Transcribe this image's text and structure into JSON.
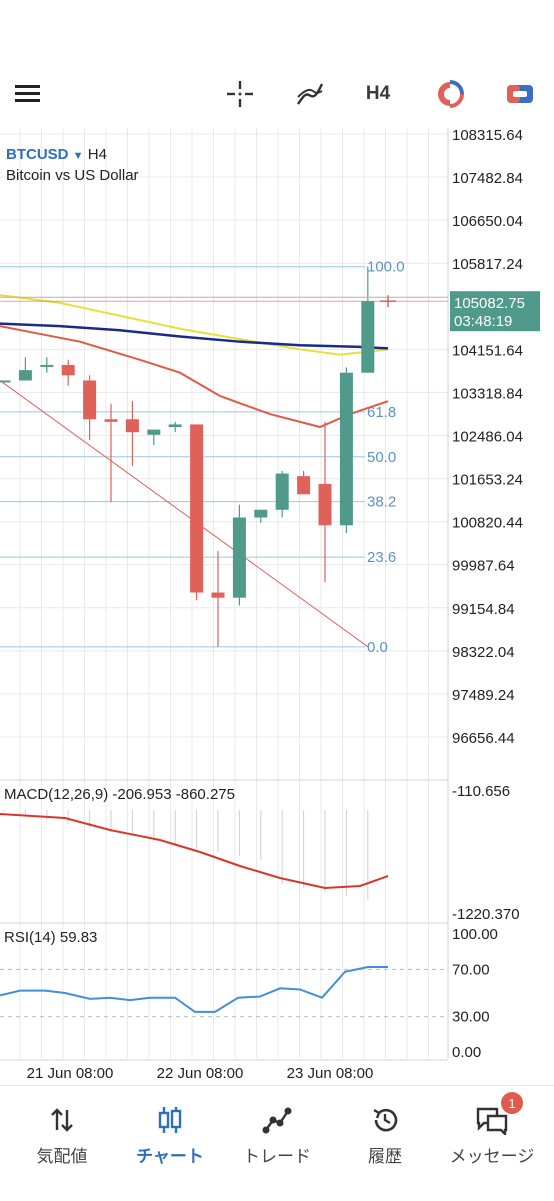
{
  "toolbar": {
    "menu_icon": "hamburger-menu-icon",
    "crosshair_icon": "crosshair-icon",
    "indicators_icon": "indicators-icon",
    "timeframe": "H4",
    "objects_icon": "objects-icon",
    "trade_icon": "trade-icon"
  },
  "chart": {
    "symbol": "BTCUSD",
    "timeframe": "H4",
    "description": "Bitcoin vs US Dollar",
    "current_price": "105082.75",
    "countdown": "03:48:19",
    "price_labels": [
      "108315.64",
      "107482.84",
      "106650.04",
      "105817.24",
      "104151.64",
      "103318.84",
      "102486.04",
      "101653.24",
      "100820.44",
      "99987.64",
      "99154.84",
      "98322.04",
      "97489.24",
      "96656.44"
    ],
    "fib_levels": [
      "100.0",
      "61.8",
      "50.0",
      "38.2",
      "23.6",
      "0.0"
    ],
    "time_labels": [
      "21 Jun 08:00",
      "22 Jun 08:00",
      "23 Jun 08:00"
    ],
    "colors": {
      "bull": "#4f9a8a",
      "bear": "#e0605a",
      "grid": "#e9e9e9",
      "fib": "#9cc6e4",
      "fib_text": "#5b93c6",
      "ma_yellow": "#e6e03a",
      "ma_blue": "#1b2a8a",
      "ma_red": "#e05a45",
      "macd": "#d9362b",
      "rsi": "#3f8fde"
    }
  },
  "macd": {
    "label": "MACD(12,26,9) -206.953 -860.275",
    "scale_top": "-110.656",
    "scale_bottom": "-1220.370"
  },
  "rsi": {
    "label": "RSI(14) 59.83",
    "levels": [
      "100.00",
      "70.00",
      "30.00",
      "0.00"
    ]
  },
  "chart_data": {
    "type": "candlestick",
    "title": "BTCUSD H4",
    "candles": [
      {
        "o": 103550,
        "h": 103550,
        "l": 103550,
        "c": 103550
      },
      {
        "o": 103550,
        "h": 104000,
        "l": 103550,
        "c": 103750
      },
      {
        "o": 103850,
        "h": 104000,
        "l": 103700,
        "c": 103850
      },
      {
        "o": 103850,
        "h": 103950,
        "l": 103450,
        "c": 103650
      },
      {
        "o": 103550,
        "h": 103650,
        "l": 102400,
        "c": 102800
      },
      {
        "o": 102800,
        "h": 103100,
        "l": 101200,
        "c": 102750
      },
      {
        "o": 102800,
        "h": 103150,
        "l": 101900,
        "c": 102550
      },
      {
        "o": 102500,
        "h": 102600,
        "l": 102300,
        "c": 102600
      },
      {
        "o": 102650,
        "h": 102750,
        "l": 102550,
        "c": 102700
      },
      {
        "o": 102700,
        "h": 102700,
        "l": 99300,
        "c": 99450
      },
      {
        "o": 99450,
        "h": 100250,
        "l": 98400,
        "c": 99350
      },
      {
        "o": 99350,
        "h": 101150,
        "l": 99200,
        "c": 100900
      },
      {
        "o": 100900,
        "h": 101050,
        "l": 100800,
        "c": 101050
      },
      {
        "o": 101050,
        "h": 101800,
        "l": 100900,
        "c": 101750
      },
      {
        "o": 101700,
        "h": 101800,
        "l": 101350,
        "c": 101350
      },
      {
        "o": 101550,
        "h": 102750,
        "l": 99650,
        "c": 100750
      },
      {
        "o": 100750,
        "h": 103800,
        "l": 100600,
        "c": 103700
      },
      {
        "o": 103700,
        "h": 105750,
        "l": 103700,
        "c": 105082.75
      }
    ],
    "fib": {
      "high": 105750,
      "low": 98400
    },
    "price_range": [
      96300,
      108500
    ],
    "x_labels": [
      "21 Jun 08:00",
      "22 Jun 08:00",
      "23 Jun 08:00"
    ]
  }
}
